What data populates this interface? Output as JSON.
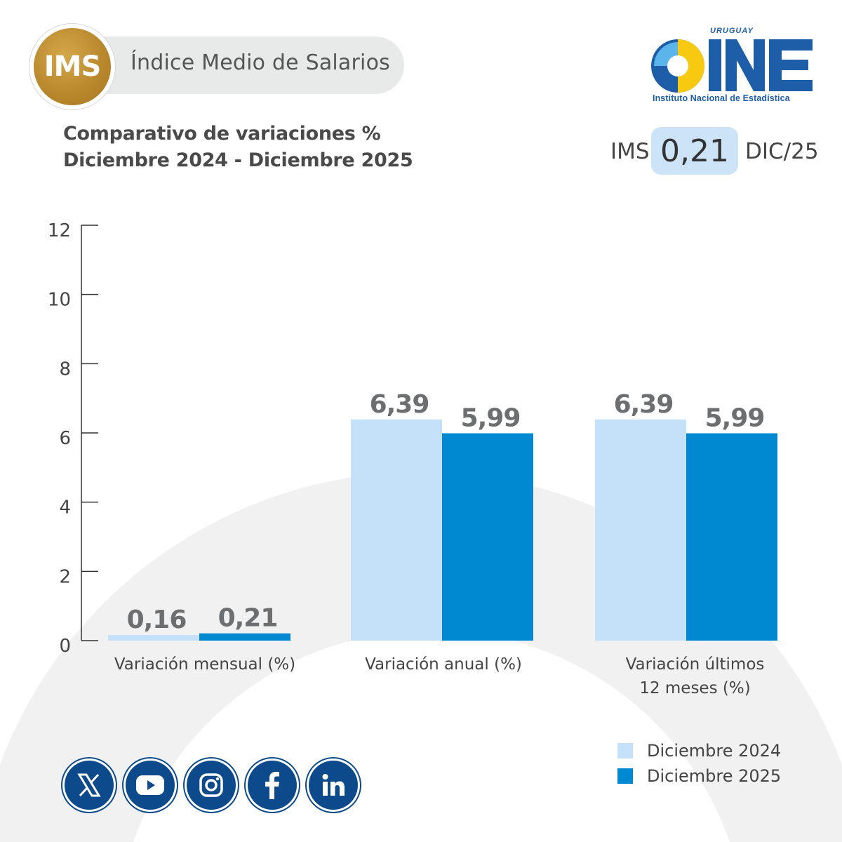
{
  "header": {
    "badge_text": "IMS",
    "title": "Índice Medio de Salarios"
  },
  "subtitle": {
    "line1": "Comparativo de variaciones %",
    "line2": "Diciembre 2024 - Diciembre 2025"
  },
  "readout": {
    "label": "IMS",
    "value": "0,21",
    "period": "DIC/25"
  },
  "logo": {
    "country": "URUGUAY",
    "letters": "INE",
    "caption": "Instituto Nacional de Estadística"
  },
  "colors": {
    "series_2024": "#c5e1fa",
    "series_2025": "#0089d0",
    "accent_gold": "#b8862b",
    "brand_blue": "#0d4a8c"
  },
  "chart_data": {
    "type": "bar",
    "title": "",
    "xlabel": "",
    "ylabel": "",
    "ylim": [
      0,
      12
    ],
    "yticks": [
      0,
      2,
      4,
      6,
      8,
      10,
      12
    ],
    "grid": false,
    "legend_position": "bottom-right",
    "categories": [
      "Variación mensual (%)",
      "Variación anual (%)",
      "Variación últimos\n12 meses (%)"
    ],
    "series": [
      {
        "name": "Diciembre 2024",
        "values": [
          0.16,
          6.39,
          6.39
        ],
        "labels": [
          "0,16",
          "6,39",
          "6,39"
        ]
      },
      {
        "name": "Diciembre 2025",
        "values": [
          0.21,
          5.99,
          5.99
        ],
        "labels": [
          "0,21",
          "5,99",
          "5,99"
        ]
      }
    ]
  },
  "social": [
    {
      "icon": "x-icon"
    },
    {
      "icon": "youtube-icon"
    },
    {
      "icon": "instagram-icon"
    },
    {
      "icon": "facebook-icon"
    },
    {
      "icon": "linkedin-icon"
    }
  ]
}
